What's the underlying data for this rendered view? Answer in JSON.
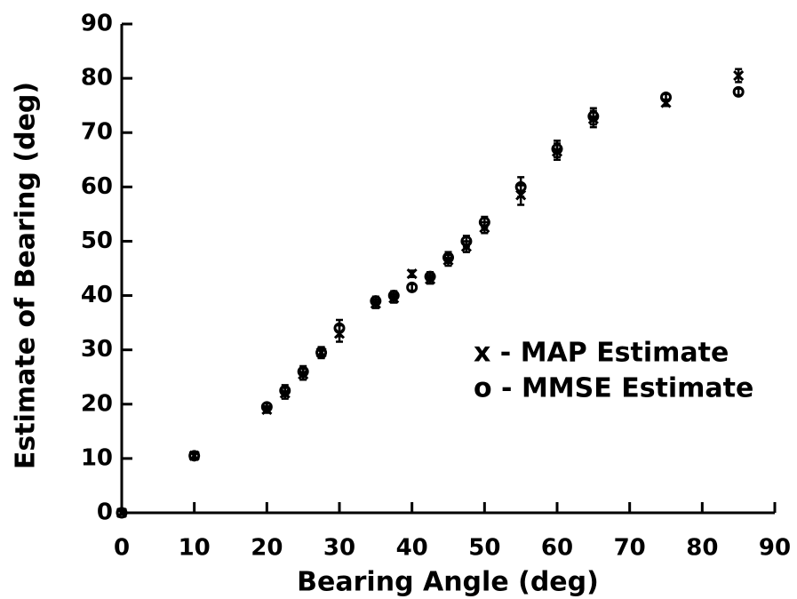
{
  "chart_data": {
    "type": "scatter",
    "x_label": "Bearing Angle (deg)",
    "y_label": "Estimate of Bearing (deg)",
    "x": [
      0,
      10,
      20,
      22.5,
      25,
      27.5,
      30,
      35,
      37.5,
      40,
      42.5,
      45,
      47.5,
      50,
      55,
      60,
      65,
      75,
      85
    ],
    "series": [
      {
        "name": "x - MAP Estimate",
        "color": "#000000",
        "marker": "x",
        "values": [
          0,
          10.5,
          19,
          22,
          25.5,
          29.5,
          33,
          38.5,
          39.5,
          44,
          43,
          46.5,
          49,
          52.5,
          58.5,
          66.5,
          72.5,
          75.5,
          80.5
        ],
        "errors": [
          0.3,
          0.6,
          0.6,
          1,
          1,
          1,
          1.5,
          0.8,
          0.8,
          0.6,
          0.8,
          1,
          1,
          1,
          1.8,
          1.5,
          1.5,
          0.6,
          1.2
        ]
      },
      {
        "name": "o - MMSE Estimate",
        "color": "#000000",
        "marker": "o",
        "values": [
          0,
          10.5,
          19.5,
          22.5,
          26,
          29.5,
          34,
          39,
          40,
          41.5,
          43.5,
          47,
          50,
          53.5,
          60,
          67,
          73,
          76.5,
          77.5
        ],
        "errors": [
          0.3,
          0.6,
          0.6,
          1,
          1,
          1,
          1.5,
          0.8,
          0.8,
          0.6,
          0.8,
          1,
          1,
          1,
          1.8,
          1.5,
          1.5,
          0.6,
          0.6
        ]
      }
    ],
    "xlim": [
      0,
      90
    ],
    "ylim": [
      0,
      90
    ],
    "xticks": [
      0,
      10,
      20,
      30,
      40,
      50,
      60,
      70,
      80,
      90
    ],
    "yticks": [
      0,
      10,
      20,
      30,
      40,
      50,
      60,
      70,
      80,
      90
    ],
    "grid": false
  }
}
